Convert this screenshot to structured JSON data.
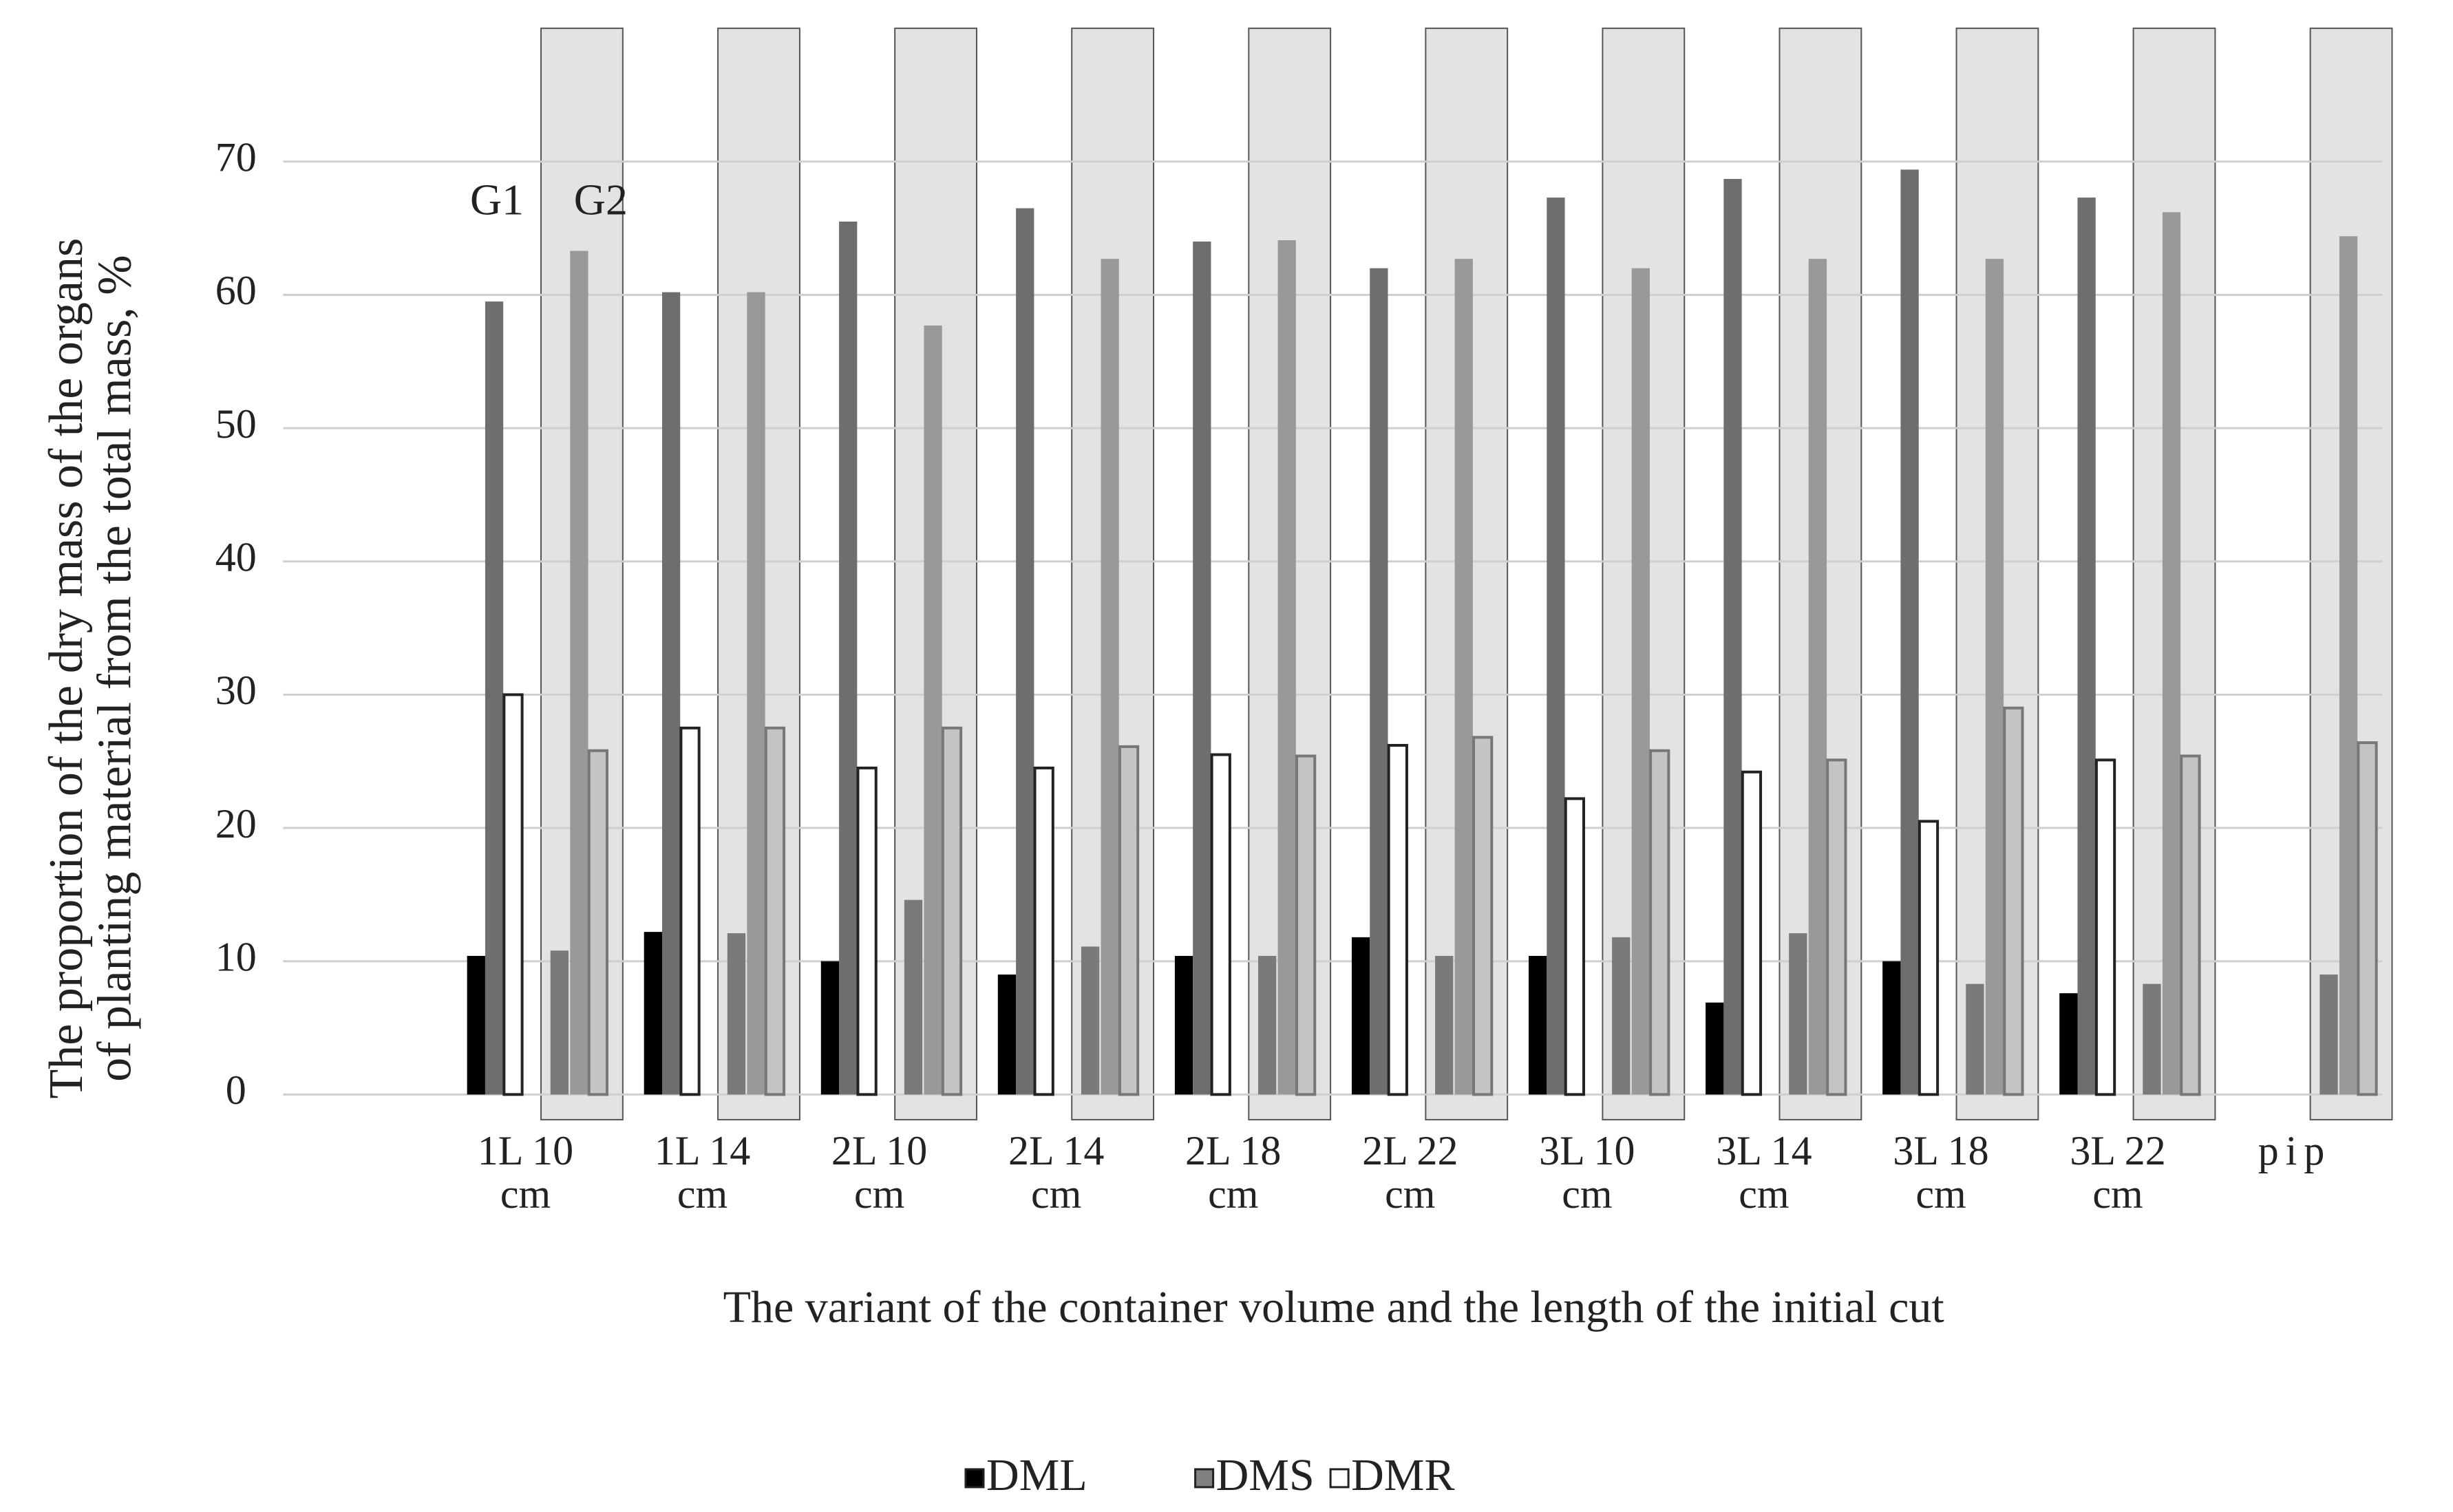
{
  "chart_data": {
    "type": "grouped-bar",
    "xlabel": "The variant of the container volume  and the length of the initial  cut",
    "ylabel": [
      "The proportion of the dry mass of the organs",
      "of planting material  from the total mass, %"
    ],
    "categories": [
      "1L 10 cm",
      "1L 14 cm",
      "2L 10 cm",
      "2L 14 cm",
      "2L 18 cm",
      "2L 22 cm",
      "3L 10 cm",
      "3L 14 cm",
      "3L 18 cm",
      "3L 22 cm",
      "pip"
    ],
    "ylim": [
      0,
      80
    ],
    "yticks": [
      0,
      10,
      20,
      30,
      40,
      50,
      60,
      70
    ],
    "grid": true,
    "legend": [
      {
        "name": "DML",
        "color": "#000000"
      },
      {
        "name": "DMS",
        "color": "#808080"
      },
      {
        "name": "DMR",
        "color": "#ffffff"
      }
    ],
    "groups": [
      {
        "label": "G1",
        "series": [
          {
            "color": "#000000",
            "values": [
              10.4,
              12.2,
              10.0,
              9.0,
              10.4,
              11.8,
              10.4,
              6.9,
              10.0,
              7.6,
              null
            ]
          },
          {
            "color": "#6e6e6e",
            "values": [
              59.5,
              60.2,
              65.5,
              66.5,
              64.0,
              62.0,
              67.3,
              68.7,
              69.4,
              67.3,
              null
            ]
          },
          {
            "color": "#ffffff",
            "values": [
              30.0,
              27.5,
              24.5,
              24.5,
              25.5,
              26.2,
              22.2,
              24.2,
              20.5,
              25.1,
              null
            ]
          }
        ]
      },
      {
        "label": "G2",
        "background": "#e3e3e3",
        "series": [
          {
            "color": "#7a7a7a",
            "values": [
              10.8,
              12.1,
              14.6,
              11.1,
              10.4,
              10.4,
              11.8,
              12.1,
              8.3,
              8.3,
              9.0
            ]
          },
          {
            "color": "#999999",
            "values": [
              63.3,
              60.2,
              57.7,
              62.7,
              64.1,
              62.7,
              62.0,
              62.7,
              62.7,
              66.2,
              64.4
            ]
          },
          {
            "color": "#c4c4c4",
            "values": [
              25.8,
              27.5,
              27.5,
              26.1,
              25.4,
              26.8,
              25.8,
              25.1,
              29.0,
              25.4,
              26.4
            ]
          }
        ]
      }
    ]
  }
}
